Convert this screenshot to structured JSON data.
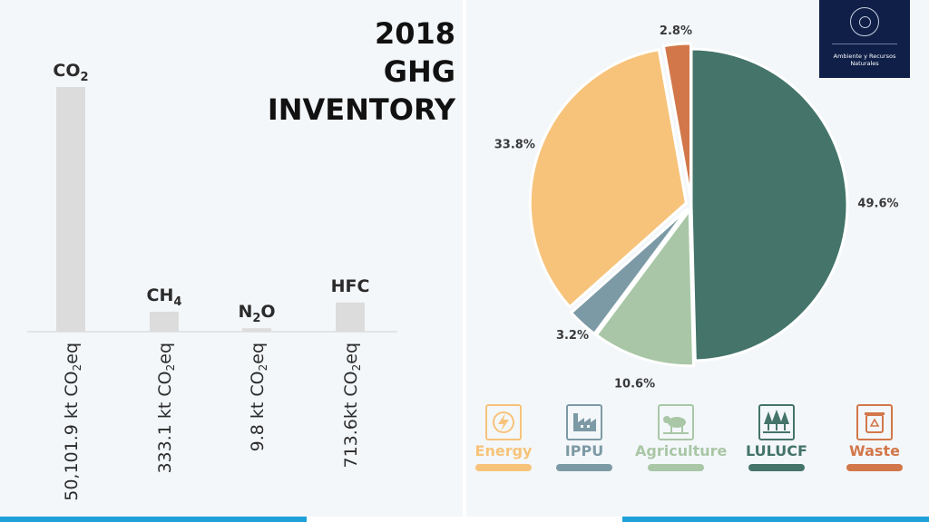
{
  "title_lines": [
    "2018",
    "GHG",
    "INVENTORY"
  ],
  "logo": {
    "text": "Ambiente y Recursos Naturales"
  },
  "colors": {
    "bar": "#dcdcdc",
    "energy": "#f7c37a",
    "ippu": "#7c9aa5",
    "agriculture": "#a9c7a6",
    "lulucf": "#44746a",
    "waste": "#d2774a"
  },
  "chart_data": [
    {
      "type": "bar",
      "categories": [
        "CO2",
        "CH4",
        "N2O",
        "HFC"
      ],
      "category_labels": [
        {
          "main": "CO",
          "sub": "2",
          "tail": ""
        },
        {
          "main": "CH",
          "sub": "4",
          "tail": ""
        },
        {
          "main": "N",
          "sub": "2",
          "tail": "O"
        },
        {
          "main": "HFC",
          "sub": "",
          "tail": ""
        }
      ],
      "values": [
        50101.9,
        333.1,
        9.8,
        713.6
      ],
      "value_labels": [
        {
          "pre": "50,101.9 kt CO",
          "sub": "2",
          "post": "eq"
        },
        {
          "pre": "333.1 kt CO",
          "sub": "2",
          "post": "eq"
        },
        {
          "pre": "9.8 kt CO",
          "sub": "2",
          "post": "eq"
        },
        {
          "pre": "713.6kt CO",
          "sub": "2",
          "post": "eq"
        }
      ],
      "unit": "kt CO2eq",
      "title": "",
      "xlabel": "",
      "ylabel": ""
    },
    {
      "type": "pie",
      "title": "",
      "labels": [
        "LULUCF",
        "Agriculture",
        "IPPU",
        "Energy",
        "Waste"
      ],
      "values": [
        49.6,
        10.6,
        3.2,
        33.8,
        2.8
      ],
      "value_labels": [
        "49.6%",
        "10.6%",
        "3.2%",
        "33.8%",
        "2.8%"
      ],
      "start": "12 o'clock",
      "direction": "clockwise",
      "legend": {
        "placement": "bottom",
        "entries": [
          {
            "label": "Energy",
            "icon": "lightning-icon",
            "color_key": "energy"
          },
          {
            "label": "IPPU",
            "icon": "factory-icon",
            "color_key": "ippu"
          },
          {
            "label": "Agriculture",
            "icon": "cow-icon",
            "color_key": "agriculture"
          },
          {
            "label": "LULUCF",
            "icon": "trees-icon",
            "color_key": "lulucf"
          },
          {
            "label": "Waste",
            "icon": "recycle-bin-icon",
            "color_key": "waste"
          }
        ]
      }
    }
  ]
}
